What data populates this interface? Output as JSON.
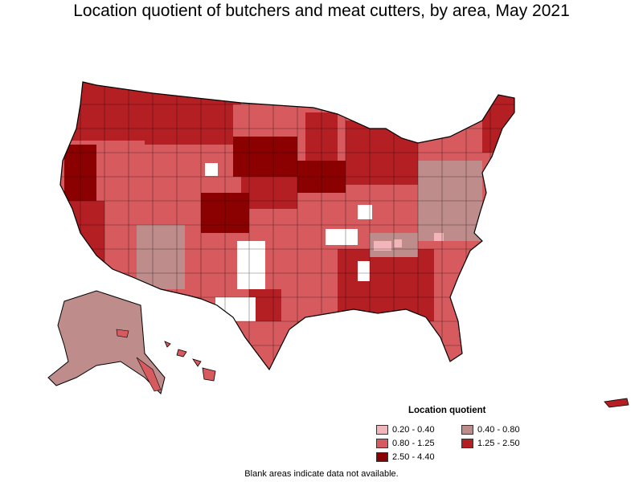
{
  "title": "Location quotient of butchers and meat cutters, by area, May 2021",
  "legend": {
    "title": "Location quotient",
    "items": [
      {
        "label": "0.20 - 0.40",
        "color": "#f2b6ba"
      },
      {
        "label": "0.40 - 0.80",
        "color": "#bf8c8c"
      },
      {
        "label": "0.80 - 1.25",
        "color": "#d65a5e"
      },
      {
        "label": "1.25 - 2.50",
        "color": "#b41f24"
      },
      {
        "label": "2.50 - 4.40",
        "color": "#8b0000"
      }
    ]
  },
  "footnote": "Blank areas indicate data not available.",
  "colors": {
    "no_data": "#ffffff",
    "border": "#000000"
  }
}
